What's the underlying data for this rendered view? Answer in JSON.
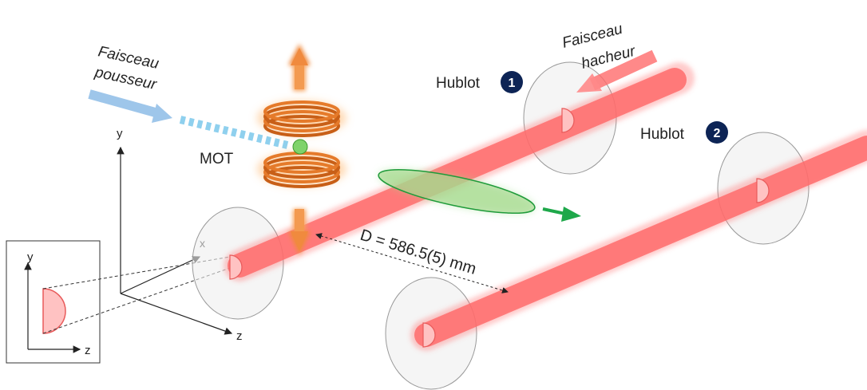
{
  "labels": {
    "faisceau_pousseur_line1": "Faisceau",
    "faisceau_pousseur_line2": "pousseur",
    "faisceau_hacheur_line1": "Faisceau",
    "faisceau_hacheur_line2": "hacheur",
    "mot": "MOT",
    "hublot1": "Hublot",
    "hublot1_num": "1",
    "hublot2": "Hublot",
    "hublot2_num": "2",
    "distance": "D = 586.5(5) mm"
  },
  "axes": {
    "main_y": "y",
    "main_x": "x",
    "main_z": "z",
    "inset_y": "y",
    "inset_z": "z"
  },
  "colors": {
    "laser": "#ff6b6b",
    "coil": "#e8822a",
    "pusher": "#9ec6ea",
    "atom_cloud": "#7fd36a",
    "green_arrow": "#1ea84a",
    "badge": "#0d2455",
    "window": "#eeeeee"
  }
}
